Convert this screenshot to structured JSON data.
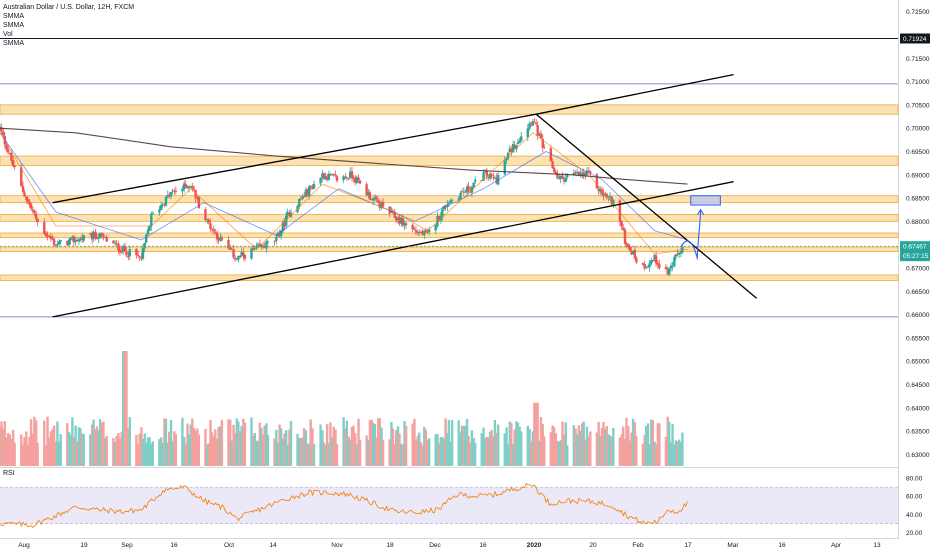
{
  "header": {
    "title": "Australian Dollar / U.S. Dollar, 12H, FXCM",
    "indicators": [
      "SMMA",
      "SMMA",
      "Vol",
      "SMMA"
    ]
  },
  "rsi_panel": {
    "label": "RSI"
  },
  "colors": {
    "bull": "#26a69a",
    "bear": "#ef5350",
    "vol_bull": "#7fcfc7",
    "vol_bear": "#f4a19f",
    "zone_fill": "#fbe2b3",
    "zone_border": "#f0a93b",
    "rsi_line": "#f57c00",
    "rsi_band": "#e9e5f6",
    "smma_long": "#4e342e",
    "smma_mid": "#2962ff",
    "smma_short": "#f57c00",
    "projection": "#2962ff",
    "price_tag": "#26a69a",
    "level_tag": "#131722"
  },
  "price_scale": {
    "labels": [
      "0.72500",
      "0.71500",
      "0.71000",
      "0.70500",
      "0.70000",
      "0.69500",
      "0.69000",
      "0.68500",
      "0.68000",
      "0.67500",
      "0.67000",
      "0.66500",
      "0.66000",
      "0.65500",
      "0.65000",
      "0.64500",
      "0.64000",
      "0.63500",
      "0.63000"
    ],
    "current_price": "0.67467",
    "countdown": "05:27:15",
    "level_price": "0.71924"
  },
  "rsi_scale": {
    "labels": [
      "80.00",
      "60.00",
      "40.00",
      "20.00"
    ]
  },
  "time_axis": {
    "labels": [
      "Aug",
      "19",
      "Sep",
      "16",
      "Oct",
      "14",
      "Nov",
      "18",
      "Dec",
      "16",
      "2020",
      "20",
      "Feb",
      "17",
      "Mar",
      "16",
      "Apr",
      "13"
    ]
  },
  "chart_data": [
    {
      "type": "candlestick",
      "title": "Australian Dollar / U.S. Dollar, 12H, FXCM",
      "ylim": [
        0.6275,
        0.7275
      ],
      "x_range": [
        "2019-07-22",
        "2020-04-20"
      ],
      "ohlc_path": [
        [
          "2019-07-22",
          0.7
        ],
        [
          "2019-07-28",
          0.688
        ],
        [
          "2019-08-03",
          0.679
        ],
        [
          "2019-08-08",
          0.675
        ],
        [
          "2019-08-14",
          0.676
        ],
        [
          "2019-08-21",
          0.677
        ],
        [
          "2019-08-28",
          0.674
        ],
        [
          "2019-09-03",
          0.672
        ],
        [
          "2019-09-06",
          0.681
        ],
        [
          "2019-09-12",
          0.686
        ],
        [
          "2019-09-18",
          0.688
        ],
        [
          "2019-09-22",
          0.681
        ],
        [
          "2019-09-27",
          0.676
        ],
        [
          "2019-10-02",
          0.672
        ],
        [
          "2019-10-08",
          0.674
        ],
        [
          "2019-10-14",
          0.676
        ],
        [
          "2019-10-18",
          0.682
        ],
        [
          "2019-10-23",
          0.686
        ],
        [
          "2019-10-28",
          0.69
        ],
        [
          "2019-11-02",
          0.689
        ],
        [
          "2019-11-06",
          0.69
        ],
        [
          "2019-11-12",
          0.685
        ],
        [
          "2019-11-19",
          0.681
        ],
        [
          "2019-11-25",
          0.678
        ],
        [
          "2019-11-29",
          0.677
        ],
        [
          "2019-12-05",
          0.684
        ],
        [
          "2019-12-09",
          0.686
        ],
        [
          "2019-12-12",
          0.687
        ],
        [
          "2019-12-16",
          0.69
        ],
        [
          "2019-12-20",
          0.689
        ],
        [
          "2019-12-24",
          0.695
        ],
        [
          "2019-12-31",
          0.702
        ],
        [
          "2020-01-04",
          0.694
        ],
        [
          "2020-01-08",
          0.689
        ],
        [
          "2020-01-12",
          0.69
        ],
        [
          "2020-01-17",
          0.69
        ],
        [
          "2020-01-21",
          0.686
        ],
        [
          "2020-01-25",
          0.684
        ],
        [
          "2020-01-28",
          0.676
        ],
        [
          "2020-02-02",
          0.67
        ],
        [
          "2020-02-06",
          0.672
        ],
        [
          "2020-02-10",
          0.669
        ],
        [
          "2020-02-14",
          0.674
        ],
        [
          "2020-02-16",
          0.6747
        ]
      ],
      "smma": [
        {
          "name": "SMMA",
          "role": "long",
          "points": [
            [
              "2019-07-22",
              0.7
            ],
            [
              "2019-08-14",
              0.699
            ],
            [
              "2019-09-12",
              0.696
            ],
            [
              "2019-10-14",
              0.694
            ],
            [
              "2019-11-12",
              0.6925
            ],
            [
              "2019-12-12",
              0.691
            ],
            [
              "2020-01-12",
              0.69
            ],
            [
              "2020-01-28",
              0.689
            ],
            [
              "2020-02-16",
              0.688
            ]
          ]
        },
        {
          "name": "SMMA",
          "role": "mid",
          "points": [
            [
              "2019-07-22",
              0.699
            ],
            [
              "2019-08-08",
              0.682
            ],
            [
              "2019-09-03",
              0.676
            ],
            [
              "2019-09-22",
              0.684
            ],
            [
              "2019-10-14",
              0.677
            ],
            [
              "2019-11-02",
              0.687
            ],
            [
              "2019-11-25",
              0.68
            ],
            [
              "2019-12-16",
              0.687
            ],
            [
              "2020-01-04",
              0.695
            ],
            [
              "2020-01-21",
              0.689
            ],
            [
              "2020-02-06",
              0.678
            ],
            [
              "2020-02-16",
              0.676
            ]
          ]
        },
        {
          "name": "SMMA",
          "role": "short",
          "points": [
            [
              "2019-07-22",
              0.699
            ],
            [
              "2019-08-08",
              0.679
            ],
            [
              "2019-09-06",
              0.679
            ],
            [
              "2019-09-18",
              0.687
            ],
            [
              "2019-10-08",
              0.674
            ],
            [
              "2019-10-28",
              0.688
            ],
            [
              "2019-11-19",
              0.682
            ],
            [
              "2019-11-29",
              0.678
            ],
            [
              "2019-12-16",
              0.689
            ],
            [
              "2019-12-31",
              0.699
            ],
            [
              "2020-01-17",
              0.69
            ],
            [
              "2020-02-06",
              0.673
            ],
            [
              "2020-02-16",
              0.674
            ]
          ]
        }
      ],
      "zones": [
        [
          0.703,
          0.705
        ],
        [
          0.692,
          0.694
        ],
        [
          0.684,
          0.6855
        ],
        [
          0.68,
          0.6815
        ],
        [
          0.6765,
          0.6775
        ],
        [
          0.6735,
          0.6745
        ],
        [
          0.6673,
          0.6685
        ]
      ],
      "horizontal_lines": [
        0.71924,
        0.7095,
        0.6595
      ],
      "trendlines": [
        [
          [
            "2019-08-07",
            0.684
          ],
          [
            "2020-01-01",
            0.703
          ],
          [
            "2020-03-01",
            0.7115
          ]
        ],
        [
          [
            "2019-08-07",
            0.6595
          ],
          [
            "2020-03-01",
            0.6885
          ]
        ],
        [
          [
            "2020-01-01",
            0.703
          ],
          [
            "2020-03-08",
            0.6635
          ]
        ]
      ],
      "target_box": {
        "x": [
          "2020-02-17",
          "2020-02-26"
        ],
        "y": [
          0.6835,
          0.6855
        ]
      },
      "projection_path": [
        [
          "2020-02-14",
          0.6745
        ],
        [
          "2020-02-16",
          0.677
        ],
        [
          "2020-02-18",
          0.672
        ],
        [
          "2020-02-19",
          0.672
        ],
        [
          "2020-02-20",
          0.6825
        ]
      ]
    },
    {
      "type": "bar",
      "name": "Vol",
      "panel": "volume",
      "note_scale": "relative",
      "seed_peaks": [
        [
          "2019-08-29",
          1.0
        ],
        [
          "2020-01-01",
          0.55
        ],
        [
          "2019-12-10",
          0.35
        ]
      ]
    },
    {
      "type": "line",
      "name": "RSI",
      "ylim": [
        15,
        90
      ],
      "band": [
        30,
        70
      ],
      "points": [
        [
          "2019-07-22",
          30
        ],
        [
          "2019-08-01",
          28
        ],
        [
          "2019-08-07",
          37
        ],
        [
          "2019-08-14",
          48
        ],
        [
          "2019-08-21",
          45
        ],
        [
          "2019-08-28",
          43
        ],
        [
          "2019-09-03",
          45
        ],
        [
          "2019-09-10",
          67
        ],
        [
          "2019-09-16",
          70
        ],
        [
          "2019-09-22",
          55
        ],
        [
          "2019-09-28",
          47
        ],
        [
          "2019-10-02",
          35
        ],
        [
          "2019-10-10",
          47
        ],
        [
          "2019-10-17",
          57
        ],
        [
          "2019-10-24",
          64
        ],
        [
          "2019-10-30",
          64
        ],
        [
          "2019-11-05",
          62
        ],
        [
          "2019-11-11",
          54
        ],
        [
          "2019-11-19",
          43
        ],
        [
          "2019-11-26",
          42
        ],
        [
          "2019-12-02",
          45
        ],
        [
          "2019-12-08",
          62
        ],
        [
          "2019-12-14",
          60
        ],
        [
          "2019-12-20",
          62
        ],
        [
          "2019-12-25",
          68
        ],
        [
          "2019-12-31",
          73
        ],
        [
          "2020-01-05",
          52
        ],
        [
          "2020-01-11",
          55
        ],
        [
          "2020-01-18",
          54
        ],
        [
          "2020-01-24",
          50
        ],
        [
          "2020-01-29",
          38
        ],
        [
          "2020-02-03",
          30
        ],
        [
          "2020-02-07",
          32
        ],
        [
          "2020-02-10",
          45
        ],
        [
          "2020-02-13",
          43
        ],
        [
          "2020-02-16",
          52
        ]
      ]
    }
  ]
}
